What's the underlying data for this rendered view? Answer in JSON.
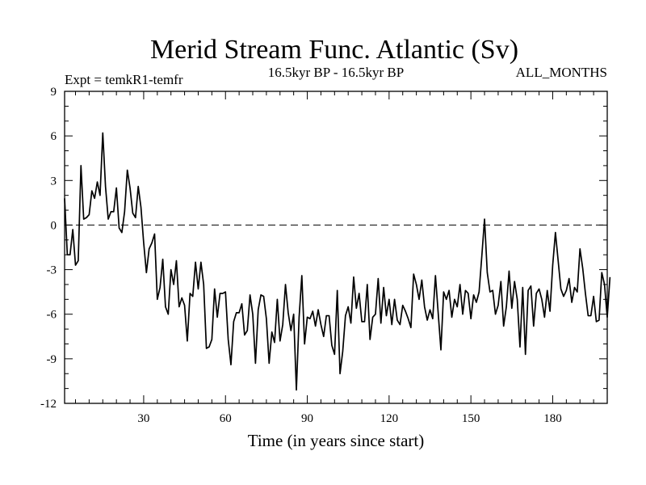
{
  "chart_data": {
    "type": "line",
    "title": "Merid Stream Func. Atlantic (Sv)",
    "subtitle_left": "Expt = temkR1-temfr",
    "subtitle_center": "16.5kyr BP - 16.5kyr BP",
    "subtitle_right": "ALL_MONTHS",
    "xlabel": "Time (in years since start)",
    "ylabel": "",
    "xlim": [
      1,
      200
    ],
    "ylim": [
      -12,
      9
    ],
    "xticks": [
      30,
      60,
      90,
      120,
      150,
      180
    ],
    "xtick_labels": [
      "30",
      "60",
      "90",
      "120",
      "150",
      "180"
    ],
    "yticks": [
      -12,
      -9,
      -6,
      -3,
      0,
      3,
      6,
      9
    ],
    "ytick_labels": [
      "-12",
      "-9",
      "-6",
      "-3",
      "0",
      "3",
      "6",
      "9"
    ],
    "reference_line": {
      "y": 0,
      "style": "dashed"
    },
    "series": [
      {
        "name": "Merid Stream Func. Atlantic",
        "x_start": 1,
        "x_step": 1,
        "values": [
          1.8,
          -2.0,
          -2.0,
          -0.3,
          -2.7,
          -2.4,
          4.0,
          0.4,
          0.5,
          0.7,
          2.3,
          1.8,
          2.9,
          2.0,
          6.2,
          2.6,
          0.4,
          0.9,
          0.9,
          2.5,
          -0.2,
          -0.5,
          0.9,
          3.7,
          2.5,
          0.8,
          0.5,
          2.6,
          1.2,
          -1.2,
          -3.2,
          -1.6,
          -1.2,
          -0.6,
          -5.0,
          -4.2,
          -2.3,
          -5.5,
          -6.0,
          -3.0,
          -4.0,
          -2.4,
          -5.5,
          -4.9,
          -5.4,
          -7.8,
          -4.6,
          -4.8,
          -2.5,
          -4.3,
          -2.5,
          -4.0,
          -8.3,
          -8.2,
          -7.7,
          -4.3,
          -6.2,
          -4.6,
          -4.6,
          -4.5,
          -7.7,
          -9.4,
          -6.5,
          -5.9,
          -5.9,
          -5.3,
          -7.4,
          -7.1,
          -4.7,
          -6.0,
          -9.3,
          -5.7,
          -4.7,
          -4.8,
          -6.3,
          -9.3,
          -7.2,
          -7.9,
          -5.0,
          -7.8,
          -6.7,
          -4.0,
          -5.9,
          -7.1,
          -6.0,
          -11.1,
          -6.2,
          -3.4,
          -8.0,
          -6.2,
          -6.3,
          -5.8,
          -6.8,
          -5.7,
          -6.7,
          -7.5,
          -6.1,
          -6.1,
          -8.1,
          -8.7,
          -4.4,
          -10.0,
          -8.5,
          -6.1,
          -5.5,
          -6.6,
          -3.5,
          -5.6,
          -4.6,
          -6.5,
          -6.5,
          -4.0,
          -7.7,
          -6.2,
          -6.0,
          -3.6,
          -6.6,
          -4.2,
          -6.1,
          -5.0,
          -6.7,
          -5.0,
          -6.4,
          -6.7,
          -5.4,
          -5.8,
          -6.3,
          -6.9,
          -3.3,
          -4.0,
          -5.0,
          -3.7,
          -5.5,
          -6.4,
          -5.7,
          -6.3,
          -3.4,
          -5.9,
          -8.4,
          -4.5,
          -5.0,
          -4.4,
          -6.2,
          -5.0,
          -5.5,
          -4.0,
          -6.0,
          -4.4,
          -4.6,
          -6.3,
          -4.7,
          -5.2,
          -4.5,
          -2.1,
          0.4,
          -3.2,
          -4.5,
          -4.4,
          -6.0,
          -5.4,
          -3.8,
          -6.8,
          -5.5,
          -3.1,
          -5.6,
          -3.8,
          -5.0,
          -8.2,
          -4.2,
          -8.7,
          -4.4,
          -4.1,
          -6.8,
          -4.6,
          -4.3,
          -5.0,
          -6.2,
          -4.4,
          -5.8,
          -2.7,
          -0.5,
          -2.4,
          -4.3,
          -4.8,
          -4.4,
          -3.6,
          -5.2,
          -4.2,
          -4.5,
          -1.6,
          -2.9,
          -4.6,
          -6.1,
          -6.1,
          -4.8,
          -6.5,
          -6.4,
          -3.2,
          -4.0,
          -6.2,
          -3.5
        ]
      }
    ]
  }
}
